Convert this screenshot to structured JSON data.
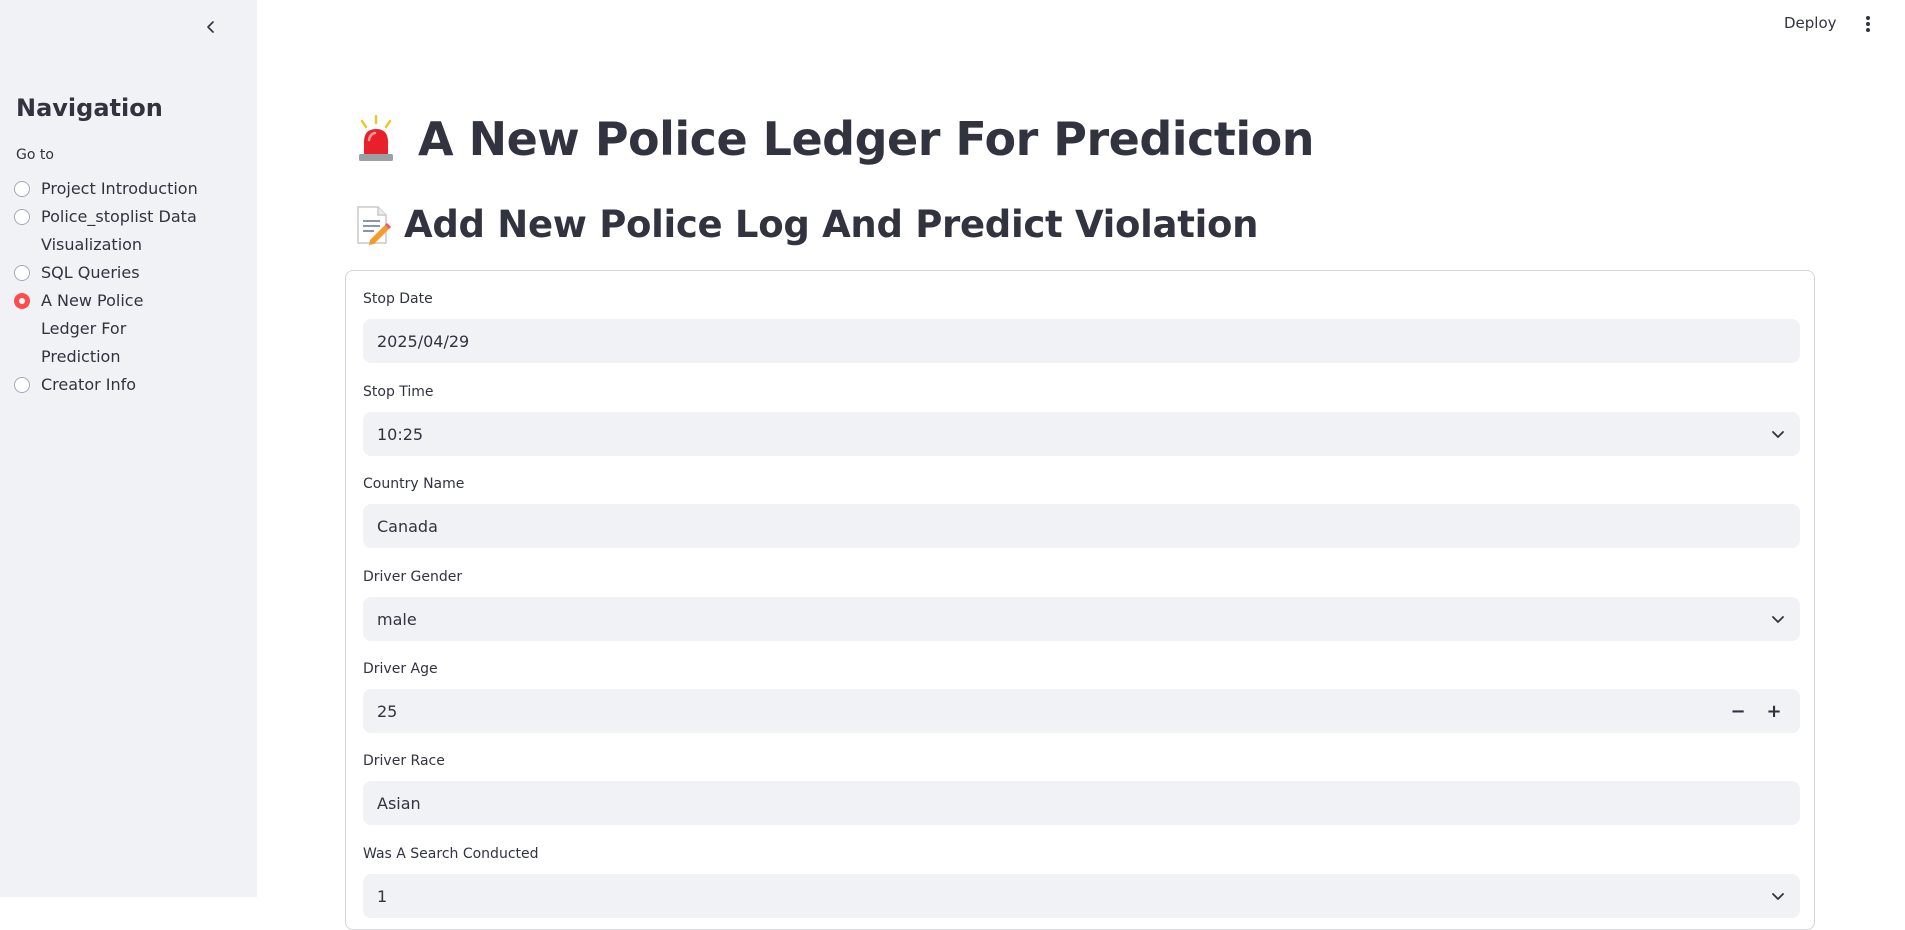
{
  "sidebar": {
    "title": "Navigation",
    "goto_label": "Go to",
    "items": [
      {
        "label": "Project Introduction",
        "selected": false
      },
      {
        "label": "Police_stoplist Data Visualization",
        "selected": false
      },
      {
        "label": "SQL Queries",
        "selected": false
      },
      {
        "label": "A New Police Ledger For Prediction",
        "selected": true
      },
      {
        "label": "Creator Info",
        "selected": false
      }
    ]
  },
  "topbar": {
    "deploy_label": "Deploy"
  },
  "main": {
    "title_icon": "police-light-emoji",
    "title": "A New Police Ledger For Prediction",
    "subtitle_icon": "memo-emoji",
    "subtitle": "Add New Police Log And Predict Violation"
  },
  "form": {
    "stop_date": {
      "label": "Stop Date",
      "value": "2025/04/29"
    },
    "stop_time": {
      "label": "Stop Time",
      "value": "10:25"
    },
    "country_name": {
      "label": "Country Name",
      "value": "Canada"
    },
    "driver_gender": {
      "label": "Driver Gender",
      "value": "male"
    },
    "driver_age": {
      "label": "Driver Age",
      "value": "25",
      "minus": "−",
      "plus": "+"
    },
    "driver_race": {
      "label": "Driver Race",
      "value": "Asian"
    },
    "search_conducted": {
      "label": "Was A Search Conducted",
      "value": "1"
    }
  },
  "colors": {
    "accent": "#ff4b4b",
    "sidebar_bg": "#f0f2f6",
    "input_bg": "#f0f2f6",
    "text": "#31333f"
  }
}
